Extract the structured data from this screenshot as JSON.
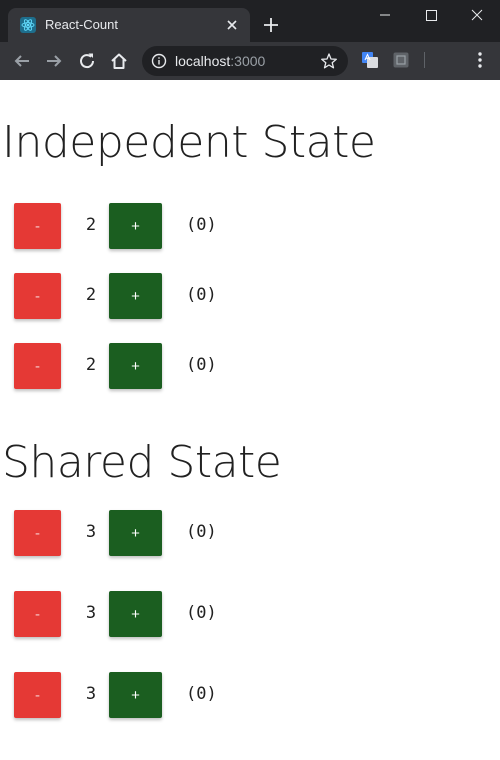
{
  "browser": {
    "tab_title": "React-Count",
    "url_host": "localhost",
    "url_port": ":3000",
    "colors": {
      "frame": "#202124",
      "toolbar": "#35363a",
      "text": "#e8eaed"
    }
  },
  "independent": {
    "title": "Indepedent State",
    "rows": [
      {
        "minus": "-",
        "count": "2",
        "plus": "+",
        "clicks": "(0)"
      },
      {
        "minus": "-",
        "count": "2",
        "plus": "+",
        "clicks": "(0)"
      },
      {
        "minus": "-",
        "count": "2",
        "plus": "+",
        "clicks": "(0)"
      }
    ]
  },
  "shared": {
    "title": "Shared State",
    "rows": [
      {
        "minus": "-",
        "count": "3",
        "plus": "+",
        "clicks": "(0)"
      },
      {
        "minus": "-",
        "count": "3",
        "plus": "+",
        "clicks": "(0)"
      },
      {
        "minus": "-",
        "count": "3",
        "plus": "+",
        "clicks": "(0)"
      }
    ]
  },
  "colors": {
    "minus_button": "#e53935",
    "plus_button": "#1b5e20"
  }
}
